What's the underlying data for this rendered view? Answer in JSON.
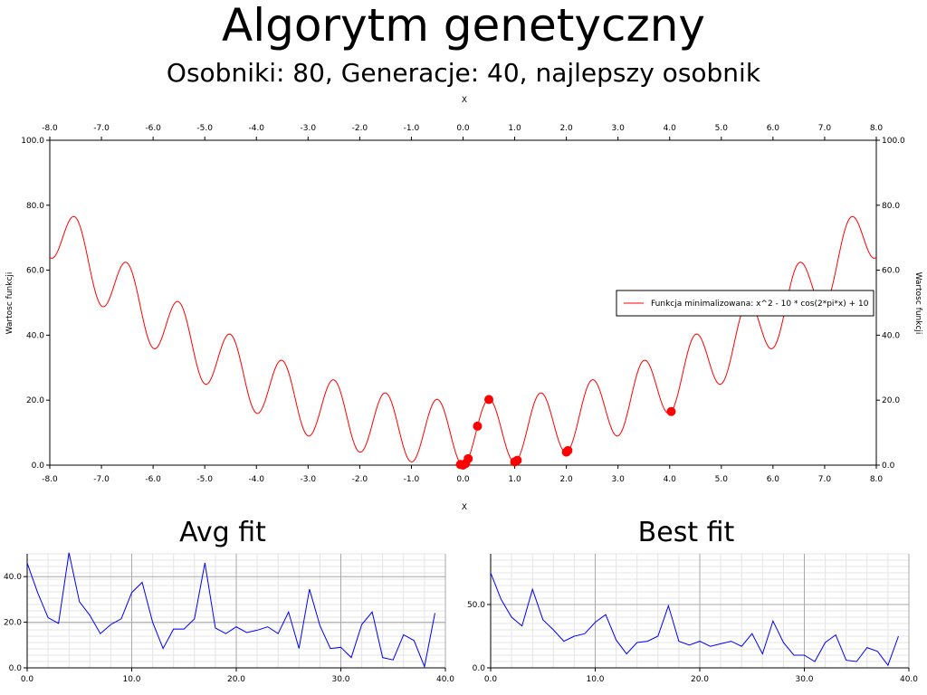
{
  "header": {
    "title": "Algorytm genetyczny",
    "subtitle": "Osobniki: 80, Generacje: 40, najlepszy osobnik"
  },
  "colors": {
    "function_line": "#ff0000",
    "population_points": "#ff0000",
    "fit_line": "#0000ff",
    "grid": "#c8c8c8"
  },
  "chart_data": [
    {
      "type": "line",
      "id": "main",
      "xlabel": "X",
      "ylabel": "Wartosc funkcji",
      "xlim": [
        -8,
        8
      ],
      "ylim": [
        0,
        100
      ],
      "xticks": [
        "-8.0",
        "-7.0",
        "-6.0",
        "-5.0",
        "-4.0",
        "-3.0",
        "-2.0",
        "-1.0",
        "0.0",
        "1.0",
        "2.0",
        "3.0",
        "4.0",
        "5.0",
        "6.0",
        "7.0",
        "8.0"
      ],
      "yticks": [
        "0.0",
        "20.0",
        "40.0",
        "60.0",
        "80.0",
        "100.0"
      ],
      "grid": false,
      "legend": "right",
      "series": [
        {
          "name": "Funkcja minimalizowana: x^2 - 10 * cos(2*pi*x) + 10",
          "type": "line",
          "function": "x^2 - 10 * cos(2*pi*x) + 10"
        },
        {
          "type": "scatter",
          "points": [
            [
              -0.05,
              0.2
            ],
            [
              0.0,
              0.0
            ],
            [
              0.05,
              0.5
            ],
            [
              0.1,
              2.0
            ],
            [
              0.28,
              12.0
            ],
            [
              0.5,
              20.2
            ],
            [
              1.0,
              1.0
            ],
            [
              1.05,
              1.5
            ],
            [
              2.0,
              4.0
            ],
            [
              2.03,
              4.5
            ],
            [
              4.03,
              16.5
            ]
          ]
        }
      ]
    },
    {
      "type": "line",
      "id": "avg",
      "title": "Avg fit",
      "xlim": [
        0,
        40
      ],
      "ylim": [
        0,
        50
      ],
      "xticks": [
        "0.0",
        "10.0",
        "20.0",
        "30.0",
        "40.0"
      ],
      "yticks": [
        "0.0",
        "20.0",
        "40.0"
      ],
      "grid": true,
      "x": [
        0,
        1,
        2,
        3,
        4,
        5,
        6,
        7,
        8,
        9,
        10,
        11,
        12,
        13,
        14,
        15,
        16,
        17,
        18,
        19,
        20,
        21,
        22,
        23,
        24,
        25,
        26,
        27,
        28,
        29,
        30,
        31,
        32,
        33,
        34,
        35,
        36,
        37,
        38,
        39
      ],
      "values": [
        46,
        33,
        22,
        19.5,
        50.5,
        29,
        23,
        15,
        19,
        21.5,
        33,
        37.5,
        20,
        8.5,
        17,
        17,
        21.5,
        46,
        17.5,
        15,
        18,
        15.5,
        16.5,
        18,
        15,
        24.5,
        8.5,
        34.5,
        18.5,
        8.5,
        9,
        4.5,
        19,
        24.5,
        4.5,
        3.5,
        14.5,
        12,
        0.5,
        24
      ]
    },
    {
      "type": "line",
      "id": "best",
      "title": "Best fit",
      "xlim": [
        0,
        40
      ],
      "ylim": [
        0,
        90
      ],
      "xticks": [
        "0.0",
        "10.0",
        "20.0",
        "30.0",
        "40.0"
      ],
      "yticks": [
        "0.0",
        "50.0"
      ],
      "grid": true,
      "x": [
        0,
        1,
        2,
        3,
        4,
        5,
        6,
        7,
        8,
        9,
        10,
        11,
        12,
        13,
        14,
        15,
        16,
        17,
        18,
        19,
        20,
        21,
        22,
        23,
        24,
        25,
        26,
        27,
        28,
        29,
        30,
        31,
        32,
        33,
        34,
        35,
        36,
        37,
        38,
        39
      ],
      "values": [
        75,
        54,
        40,
        33,
        62,
        38,
        30,
        21,
        25,
        27,
        36,
        42,
        22,
        11,
        20,
        21,
        25,
        49,
        21,
        18,
        21,
        17,
        19,
        21,
        17,
        27,
        11,
        37,
        20,
        10,
        10,
        5,
        20,
        26,
        6,
        5,
        16,
        13,
        2,
        25
      ]
    }
  ]
}
